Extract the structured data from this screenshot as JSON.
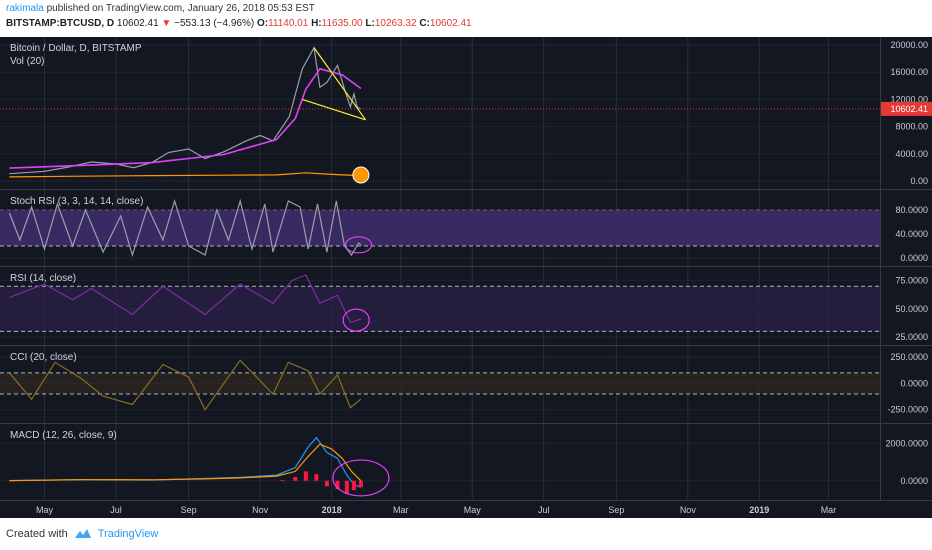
{
  "header": {
    "user": "rakimala",
    "published_text": "published on TradingView.com, January 26, 2018 05:53 EST",
    "symbol": "BITSTAMP:BTCUSD, D",
    "price": "10602.41",
    "change_arrow": "▼",
    "change": "−553.13 (−4.96%)",
    "o_label": "O:",
    "o_val": "11140.01",
    "h_label": "H:",
    "h_val": "11635.00",
    "l_label": "L:",
    "l_val": "10263.32",
    "c_label": "C:",
    "c_val": "10602.41"
  },
  "footer": {
    "created_with": "Created with",
    "brand": "TradingView",
    "logo_icon": "tradingview-logo-icon"
  },
  "colors": {
    "background": "#131722",
    "grid": "#2a2e39",
    "price_line": "#9aa0ab",
    "ma": "#e040fb",
    "volume": "#ff9800",
    "triangle": "#ffeb3b",
    "stoch_k": "#9aa0ab",
    "stoch_band": "#3f2c6b",
    "rsi": "#7b2f9e",
    "cci": "#8a6d20",
    "macd": "#2196f3",
    "signal": "#ff9800",
    "hist": "#ff1744",
    "annotation": "#e040fb",
    "last_price_tag": "#e53935"
  },
  "chart_data": {
    "type": "line",
    "time_axis": {
      "labels": [
        "May",
        "Jul",
        "Sep",
        "Nov",
        "2018",
        "Mar",
        "May",
        "Jul",
        "Sep",
        "Nov",
        "2019",
        "Mar"
      ],
      "bold_labels": [
        "2018",
        "2019"
      ]
    },
    "panes": [
      {
        "name": "price",
        "title": "Bitcoin / Dollar, D, BITSTAMP",
        "subtitle": "Vol (20)",
        "y_ticks": [
          "20000.00",
          "16000.00",
          "12000.00",
          "8000.00",
          "4000.00",
          "0.00"
        ],
        "ylim": [
          0,
          20000
        ],
        "last_value_label": "10602.41",
        "last_value": 10602.41,
        "series": [
          {
            "values": [
              [
                "2017-04-01",
                1080
              ],
              [
                "2017-05-01",
                1420
              ],
              [
                "2017-05-20",
                2000
              ],
              [
                "2017-06-10",
                2800
              ],
              [
                "2017-07-01",
                2500
              ],
              [
                "2017-07-16",
                1950
              ],
              [
                "2017-08-01",
                2750
              ],
              [
                "2017-08-15",
                4200
              ],
              [
                "2017-09-01",
                4700
              ],
              [
                "2017-09-15",
                3300
              ],
              [
                "2017-10-01",
                4300
              ],
              [
                "2017-10-20",
                5900
              ],
              [
                "2017-11-01",
                6700
              ],
              [
                "2017-11-12",
                5900
              ],
              [
                "2017-11-26",
                9500
              ],
              [
                "2017-12-07",
                16500
              ],
              [
                "2017-12-17",
                19600
              ],
              [
                "2017-12-22",
                13800
              ],
              [
                "2017-12-28",
                14500
              ],
              [
                "2018-01-06",
                17000
              ],
              [
                "2018-01-12",
                13500
              ],
              [
                "2018-01-17",
                10900
              ],
              [
                "2018-01-20",
                12800
              ],
              [
                "2018-01-23",
                10800
              ],
              [
                "2018-01-26",
                10602.41
              ]
            ]
          },
          {
            "values": [
              [
                "2017-04-01",
                1900
              ],
              [
                "2017-06-01",
                2300
              ],
              [
                "2017-08-01",
                2700
              ],
              [
                "2017-10-01",
                3900
              ],
              [
                "2017-11-15",
                6100
              ],
              [
                "2017-12-01",
                9200
              ],
              [
                "2017-12-10",
                13500
              ],
              [
                "2017-12-22",
                16500
              ],
              [
                "2018-01-10",
                15600
              ],
              [
                "2018-01-26",
                13600
              ]
            ]
          },
          {
            "values": [
              [
                "2017-04-01",
                600
              ],
              [
                "2017-06-01",
                700
              ],
              [
                "2017-08-01",
                800
              ],
              [
                "2017-10-01",
                850
              ],
              [
                "2017-11-15",
                900
              ],
              [
                "2017-12-10",
                1200
              ],
              [
                "2017-12-25",
                1050
              ],
              [
                "2018-01-10",
                900
              ],
              [
                "2018-01-26",
                800
              ]
            ]
          }
        ],
        "annotations": {
          "triangle_upper": [
            [
              "2017-12-17",
              19600
            ],
            [
              "2018-01-30",
              9000
            ]
          ],
          "triangle_lower": [
            [
              "2017-12-07",
              12000
            ],
            [
              "2018-01-30",
              9000
            ]
          ]
        }
      },
      {
        "name": "stoch_rsi",
        "title": "Stoch RSI (3, 3, 14, 14, close)",
        "y_ticks": [
          "80.0000",
          "40.0000",
          "0.0000"
        ],
        "ylim": [
          0,
          100
        ],
        "series": [
          {
            "values": [
              [
                "2017-04-01",
                75
              ],
              [
                "2017-04-10",
                30
              ],
              [
                "2017-04-20",
                85
              ],
              [
                "2017-05-01",
                15
              ],
              [
                "2017-05-12",
                90
              ],
              [
                "2017-05-25",
                20
              ],
              [
                "2017-06-05",
                80
              ],
              [
                "2017-06-20",
                10
              ],
              [
                "2017-07-05",
                70
              ],
              [
                "2017-07-15",
                5
              ],
              [
                "2017-07-28",
                85
              ],
              [
                "2017-08-10",
                30
              ],
              [
                "2017-08-20",
                95
              ],
              [
                "2017-09-01",
                20
              ],
              [
                "2017-09-15",
                5
              ],
              [
                "2017-09-25",
                80
              ],
              [
                "2017-10-05",
                30
              ],
              [
                "2017-10-15",
                95
              ],
              [
                "2017-10-25",
                15
              ],
              [
                "2017-11-05",
                90
              ],
              [
                "2017-11-12",
                10
              ],
              [
                "2017-11-25",
                95
              ],
              [
                "2017-12-05",
                85
              ],
              [
                "2017-12-12",
                15
              ],
              [
                "2017-12-20",
                90
              ],
              [
                "2017-12-28",
                10
              ],
              [
                "2018-01-05",
                95
              ],
              [
                "2018-01-12",
                20
              ],
              [
                "2018-01-18",
                5
              ],
              [
                "2018-01-24",
                25
              ],
              [
                "2018-01-26",
                22
              ]
            ]
          }
        ],
        "band": [
          20,
          80
        ]
      },
      {
        "name": "rsi",
        "title": "RSI (14, close)",
        "y_ticks": [
          "75.0000",
          "50.0000",
          "25.0000"
        ],
        "ylim": [
          25,
          80
        ],
        "series": [
          {
            "values": [
              [
                "2017-04-01",
                60
              ],
              [
                "2017-05-01",
                72
              ],
              [
                "2017-05-25",
                58
              ],
              [
                "2017-06-10",
                68
              ],
              [
                "2017-07-15",
                45
              ],
              [
                "2017-08-10",
                70
              ],
              [
                "2017-09-15",
                45
              ],
              [
                "2017-10-15",
                72
              ],
              [
                "2017-11-12",
                55
              ],
              [
                "2017-11-28",
                75
              ],
              [
                "2017-12-10",
                80
              ],
              [
                "2017-12-22",
                55
              ],
              [
                "2018-01-06",
                62
              ],
              [
                "2018-01-17",
                38
              ],
              [
                "2018-01-26",
                41
              ]
            ]
          }
        ],
        "band": [
          30,
          70
        ]
      },
      {
        "name": "cci",
        "title": "CCI (20, close)",
        "y_ticks": [
          "250.0000",
          "0.0000",
          "-250.0000"
        ],
        "ylim": [
          -300,
          280
        ],
        "series": [
          {
            "values": [
              [
                "2017-04-01",
                100
              ],
              [
                "2017-04-20",
                -150
              ],
              [
                "2017-05-10",
                200
              ],
              [
                "2017-06-01",
                50
              ],
              [
                "2017-06-20",
                -120
              ],
              [
                "2017-07-15",
                -200
              ],
              [
                "2017-08-10",
                180
              ],
              [
                "2017-09-01",
                60
              ],
              [
                "2017-09-15",
                -250
              ],
              [
                "2017-10-15",
                220
              ],
              [
                "2017-11-12",
                -100
              ],
              [
                "2017-11-25",
                200
              ],
              [
                "2017-12-12",
                120
              ],
              [
                "2017-12-22",
                -100
              ],
              [
                "2018-01-06",
                80
              ],
              [
                "2018-01-17",
                -230
              ],
              [
                "2018-01-26",
                -150
              ]
            ]
          }
        ],
        "band": [
          -100,
          100
        ]
      },
      {
        "name": "macd",
        "title": "MACD (12, 26, close, 9)",
        "y_ticks": [
          "2000.0000",
          "0.0000"
        ],
        "ylim": [
          -600,
          2600
        ],
        "series": [
          {
            "name": "MACD",
            "values": [
              [
                "2017-04-01",
                10
              ],
              [
                "2017-06-01",
                60
              ],
              [
                "2017-08-01",
                40
              ],
              [
                "2017-09-15",
                120
              ],
              [
                "2017-10-15",
                180
              ],
              [
                "2017-11-15",
                300
              ],
              [
                "2017-12-01",
                700
              ],
              [
                "2017-12-12",
                1800
              ],
              [
                "2017-12-19",
                2300
              ],
              [
                "2017-12-28",
                1500
              ],
              [
                "2018-01-06",
                1200
              ],
              [
                "2018-01-14",
                300
              ],
              [
                "2018-01-20",
                -200
              ],
              [
                "2018-01-26",
                -350
              ]
            ]
          },
          {
            "name": "Signal",
            "values": [
              [
                "2017-04-01",
                8
              ],
              [
                "2017-06-01",
                55
              ],
              [
                "2017-08-01",
                50
              ],
              [
                "2017-09-15",
                100
              ],
              [
                "2017-10-15",
                150
              ],
              [
                "2017-11-15",
                250
              ],
              [
                "2017-12-01",
                500
              ],
              [
                "2017-12-12",
                1300
              ],
              [
                "2017-12-22",
                1950
              ],
              [
                "2018-01-01",
                1700
              ],
              [
                "2018-01-10",
                1200
              ],
              [
                "2018-01-18",
                500
              ],
              [
                "2018-01-26",
                0
              ]
            ]
          },
          {
            "name": "Histogram",
            "values": [
              [
                "2017-11-20",
                40
              ],
              [
                "2017-12-01",
                200
              ],
              [
                "2017-12-10",
                500
              ],
              [
                "2017-12-19",
                350
              ],
              [
                "2017-12-28",
                -300
              ],
              [
                "2018-01-06",
                -450
              ],
              [
                "2018-01-14",
                -700
              ],
              [
                "2018-01-20",
                -500
              ],
              [
                "2018-01-26",
                -350
              ]
            ]
          }
        ]
      }
    ]
  }
}
